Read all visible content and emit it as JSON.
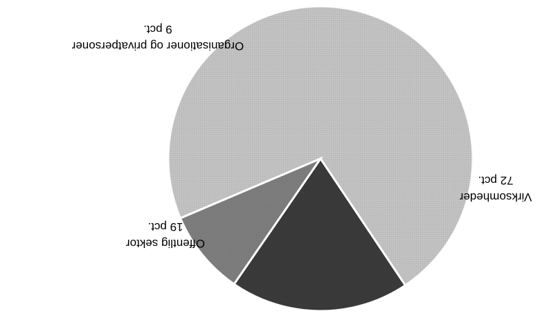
{
  "chart_data": {
    "type": "pie",
    "title": "",
    "orientation": "rotated 180 degrees",
    "slices": [
      {
        "label": "Virksomheder",
        "value_label": "72 pct.",
        "value": 72,
        "color": "#c2c2c2"
      },
      {
        "label": "Offentlig sektor",
        "value_label": "19 pct.",
        "value": 19,
        "color": "#3a3a3a"
      },
      {
        "label": "Organisationer og privatpersoner",
        "value_label": "9 pct.",
        "value": 9,
        "color": "#7d7d7d"
      }
    ]
  }
}
